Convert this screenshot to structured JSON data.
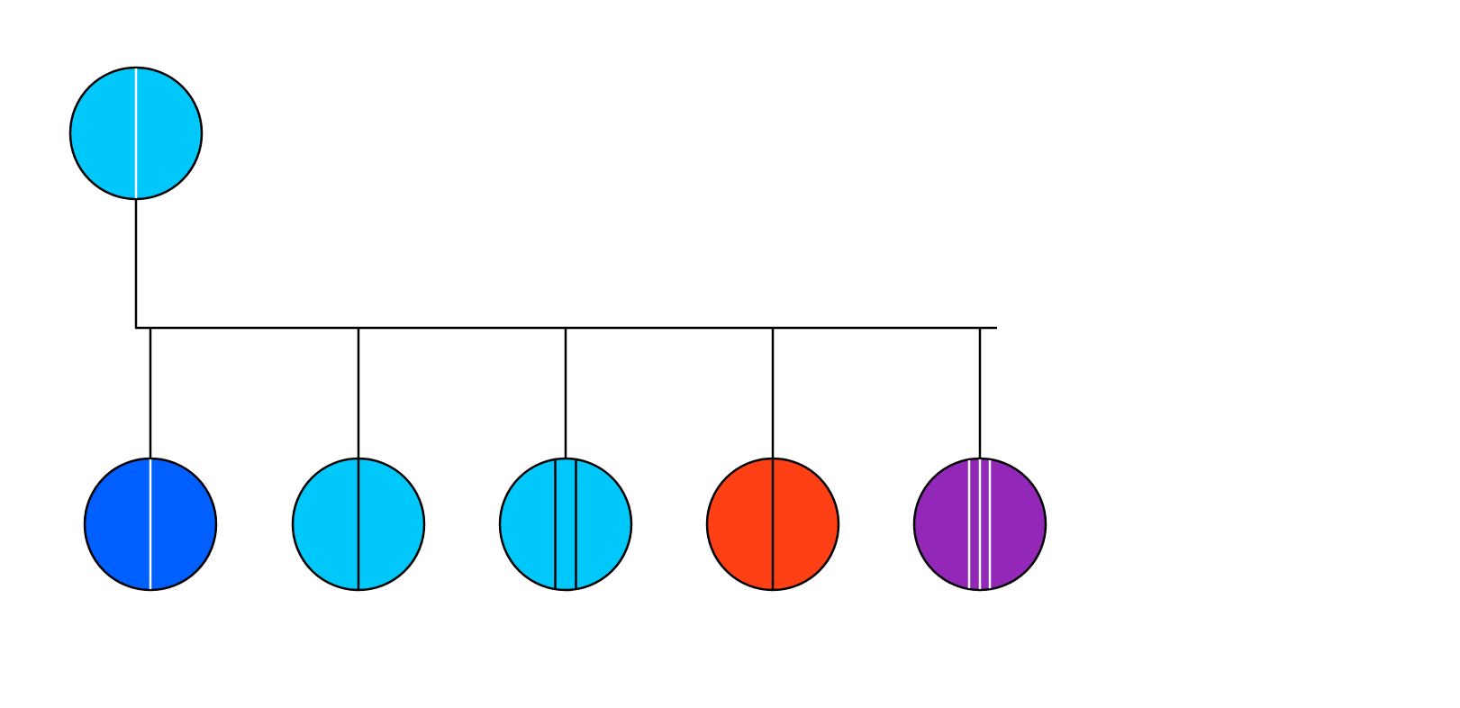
{
  "nodes": [
    {
      "color": "#00c8fa",
      "stripes": [
        "#ffffff"
      ]
    },
    {
      "color": "#0060ff",
      "stripes": [
        "#ffffff"
      ]
    },
    {
      "color": "#00c8fa",
      "stripes": [
        "#000000"
      ]
    },
    {
      "color": "#00c8fa",
      "stripes": [
        "#000000",
        "#000000"
      ]
    },
    {
      "color": "#ff4015",
      "stripes": [
        "#000000"
      ]
    },
    {
      "color": "#9328b8",
      "stripes": [
        "#ffffff",
        "#ffffff",
        "#ffffff"
      ]
    }
  ]
}
